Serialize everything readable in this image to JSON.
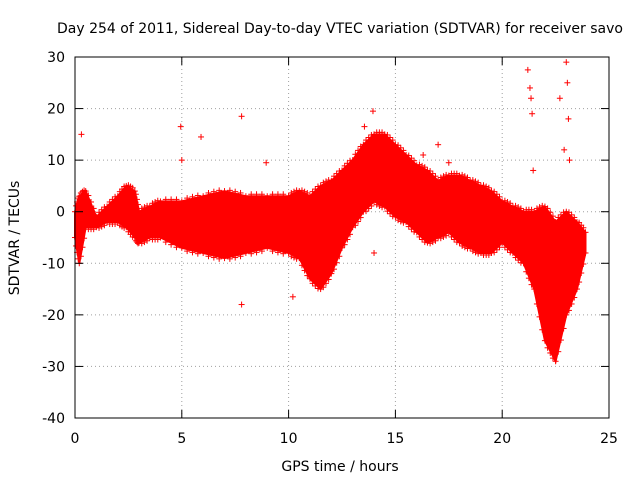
{
  "chart_data": {
    "type": "scatter",
    "title": "Day 254 of 2011, Sidereal Day-to-day VTEC variation (SDTVAR) for receiver savo",
    "xlabel": "GPS time / hours",
    "ylabel": "SDTVAR / TECUs",
    "xlim": [
      0,
      25
    ],
    "ylim": [
      -40,
      30
    ],
    "xticks": [
      0,
      5,
      10,
      15,
      20,
      25
    ],
    "yticks": [
      -40,
      -30,
      -20,
      -10,
      0,
      10,
      20,
      30
    ],
    "xtick_labels": [
      "0",
      "5",
      "10",
      "15",
      "20",
      "25"
    ],
    "ytick_labels": [
      "-40",
      "-30",
      "-20",
      "-10",
      "0",
      "10",
      "20",
      "30"
    ],
    "grid": true,
    "marker": "+",
    "color": "#ff0000",
    "series": [
      {
        "name": "upper envelope",
        "x": [
          0.0,
          0.2,
          0.5,
          1.0,
          1.5,
          2.0,
          2.4,
          2.8,
          3.0,
          3.5,
          4.0,
          5.0,
          6.0,
          7.0,
          8.0,
          9.0,
          10.0,
          10.5,
          11.0,
          11.5,
          12.0,
          12.5,
          13.0,
          13.5,
          14.0,
          14.5,
          15.0,
          15.5,
          16.0,
          16.5,
          17.0,
          17.5,
          18.0,
          18.5,
          19.0,
          19.5,
          20.0,
          20.5,
          21.0,
          21.5,
          22.0,
          22.5,
          23.0,
          23.5,
          23.9
        ],
        "y": [
          0,
          3,
          4,
          -1,
          1,
          3,
          5,
          4,
          0,
          1,
          2,
          2,
          3,
          4,
          3,
          3,
          3,
          4,
          3,
          5,
          6,
          8,
          10,
          13,
          15,
          15,
          13,
          11,
          9,
          8,
          6,
          7,
          7,
          6,
          5,
          4,
          2,
          1,
          0,
          0,
          1,
          -2,
          0,
          -2,
          -4
        ]
      },
      {
        "name": "lower envelope",
        "x": [
          0.0,
          0.2,
          0.5,
          1.0,
          1.5,
          2.0,
          2.4,
          2.8,
          3.0,
          3.5,
          4.0,
          5.0,
          6.0,
          7.0,
          8.0,
          9.0,
          10.0,
          10.5,
          11.0,
          11.5,
          12.0,
          12.5,
          13.0,
          13.5,
          14.0,
          14.5,
          15.0,
          15.5,
          16.0,
          16.5,
          17.0,
          17.5,
          18.0,
          18.5,
          19.0,
          19.5,
          20.0,
          20.5,
          21.0,
          21.5,
          22.0,
          22.5,
          23.0,
          23.5,
          23.9
        ],
        "y": [
          -5,
          -10,
          -3,
          -3,
          -2,
          -2,
          -3,
          -5,
          -6,
          -5,
          -5,
          -7,
          -8,
          -9,
          -8,
          -7,
          -8,
          -9,
          -13,
          -15,
          -12,
          -7,
          -3,
          0,
          2,
          1,
          -1,
          -2,
          -4,
          -6,
          -5,
          -4,
          -6,
          -7,
          -8,
          -8,
          -6,
          -8,
          -10,
          -15,
          -25,
          -29,
          -20,
          -15,
          -8
        ]
      },
      {
        "name": "outliers",
        "x": [
          0.3,
          4.95,
          5.0,
          5.9,
          7.8,
          7.8,
          8.95,
          10.2,
          13.55,
          13.95,
          14.0,
          16.3,
          17.0,
          17.5,
          21.2,
          21.3,
          21.35,
          21.4,
          21.45,
          22.7,
          22.9,
          23.0,
          23.05,
          23.1,
          23.15
        ],
        "y": [
          15,
          16.5,
          10,
          14.5,
          18.5,
          -18,
          9.5,
          -16.5,
          16.5,
          19.5,
          -8,
          11,
          13,
          9.5,
          27.5,
          24,
          22,
          19,
          8,
          22,
          12,
          29,
          25,
          18,
          10
        ]
      }
    ]
  }
}
